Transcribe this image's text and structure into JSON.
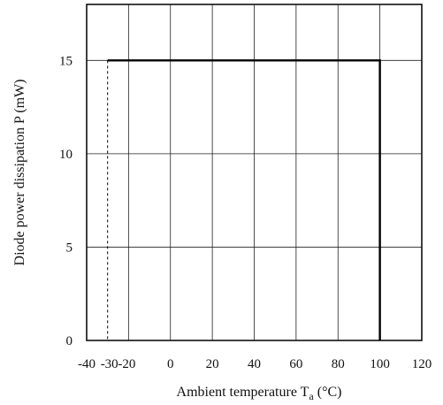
{
  "chart_data": {
    "type": "line",
    "xlabel_main": "Ambient temperature T",
    "xlabel_sub": "a",
    "xlabel_unit": " (°C)",
    "ylabel": "Diode power dissipation P (mW)",
    "xlim": [
      -40,
      120
    ],
    "ylim": [
      0,
      18
    ],
    "x_ticks": [
      -40,
      -30,
      -20,
      0,
      20,
      40,
      60,
      80,
      100,
      120
    ],
    "x_tick_labels": [
      "-40",
      "-30",
      "-20",
      "0",
      "20",
      "40",
      "60",
      "80",
      "100",
      "120"
    ],
    "y_ticks": [
      0,
      5,
      10,
      15
    ],
    "y_tick_labels": [
      "0",
      "5",
      "10",
      "15"
    ],
    "grid": true,
    "series": [
      {
        "style": "solid",
        "color": "#000000",
        "points": [
          [
            -30,
            15
          ],
          [
            100,
            15
          ],
          [
            100,
            0
          ]
        ]
      },
      {
        "style": "dashed",
        "color": "#000000",
        "points": [
          [
            -30,
            15
          ],
          [
            -30,
            0
          ]
        ]
      }
    ]
  }
}
